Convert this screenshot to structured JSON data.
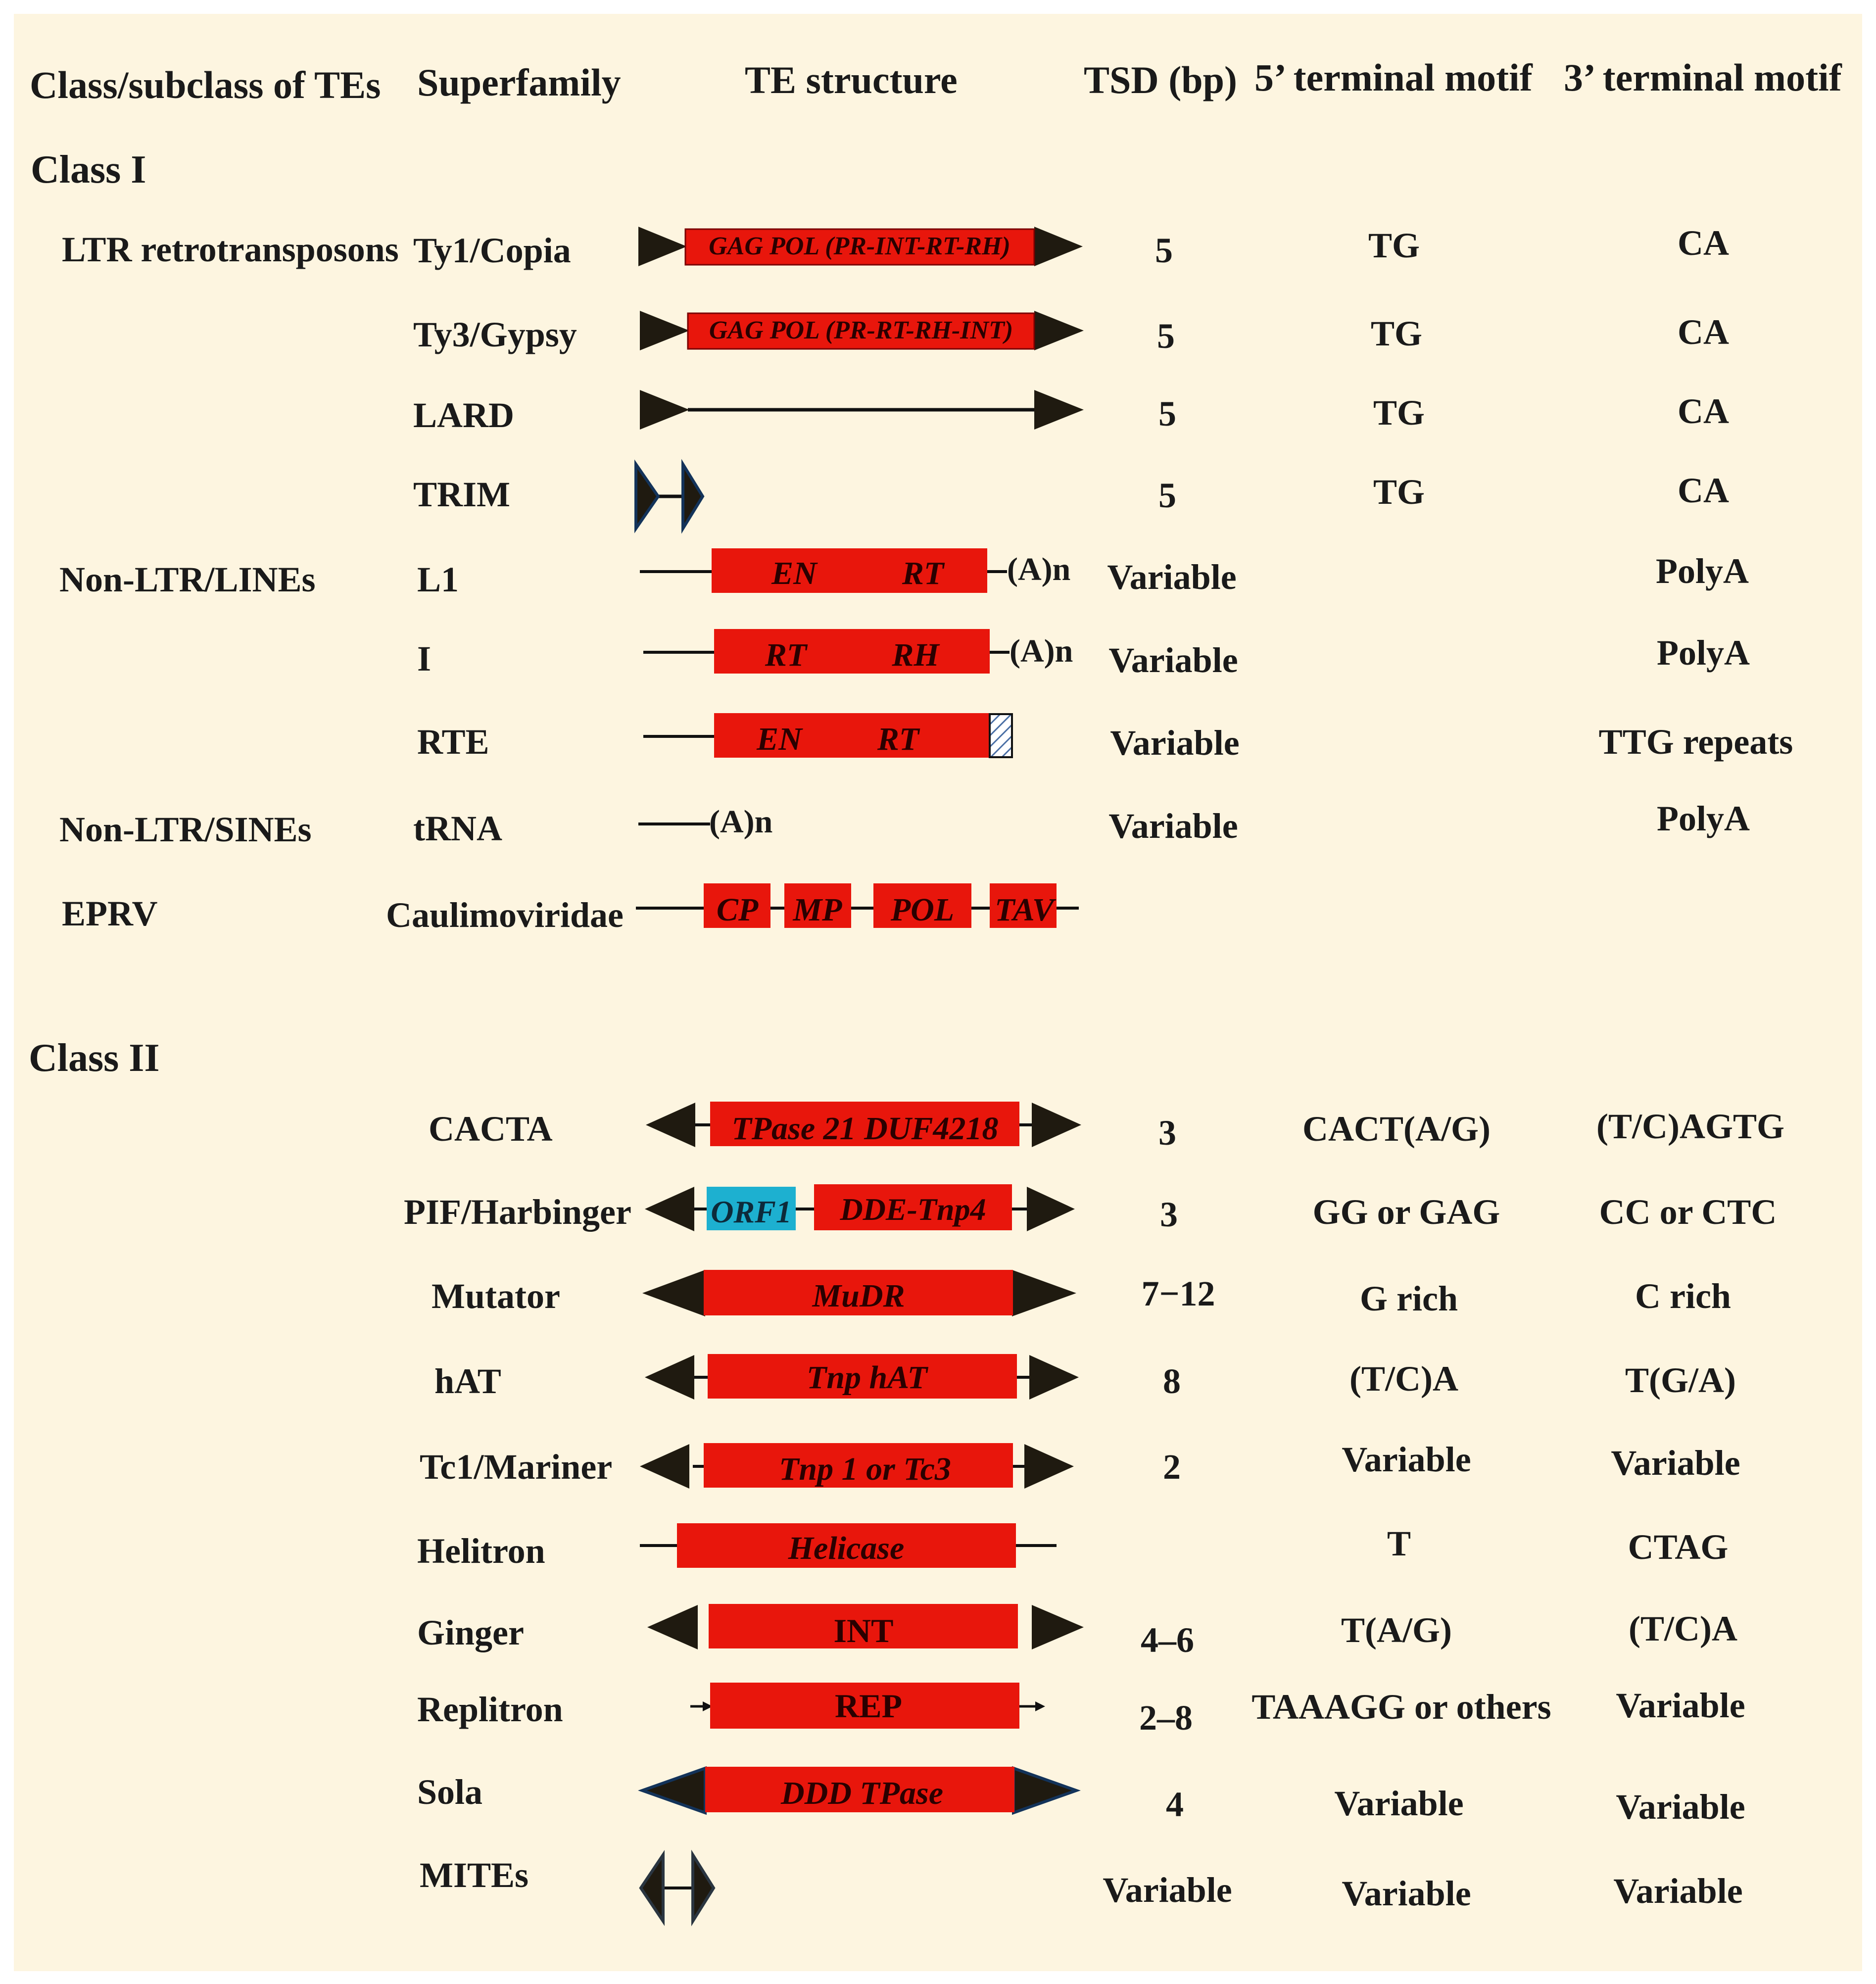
{
  "headers": {
    "class": "Class/subclass of TEs",
    "superfamily": "Superfamily",
    "structure": "TE structure",
    "tsd": "TSD (bp)",
    "motif5": "5’ terminal motif",
    "motif3": "3’ terminal motif"
  },
  "classes": {
    "class1": "Class I",
    "class2": "Class II"
  },
  "subclasses": {
    "ltr": "LTR retrotransposons",
    "lines": "Non-LTR/LINEs",
    "sines": "Non-LTR/SINEs",
    "eprv": "EPRV"
  },
  "rows": [
    {
      "superfamily": "Ty1/Copia",
      "tsd": "5",
      "motif5": "TG",
      "motif3": "CA"
    },
    {
      "superfamily": "Ty3/Gypsy",
      "tsd": "5",
      "motif5": "TG",
      "motif3": "CA"
    },
    {
      "superfamily": "LARD",
      "tsd": "5",
      "motif5": "TG",
      "motif3": "CA"
    },
    {
      "superfamily": "TRIM",
      "tsd": "5",
      "motif5": "TG",
      "motif3": "CA"
    },
    {
      "superfamily": "L1",
      "tsd": "Variable",
      "motif5": "",
      "motif3": "PolyA"
    },
    {
      "superfamily": "I",
      "tsd": "Variable",
      "motif5": "",
      "motif3": "PolyA"
    },
    {
      "superfamily": "RTE",
      "tsd": "Variable",
      "motif5": "",
      "motif3": "TTG repeats"
    },
    {
      "superfamily": "tRNA",
      "tsd": "Variable",
      "motif5": "",
      "motif3": "PolyA"
    },
    {
      "superfamily": "Caulimoviridae",
      "tsd": "",
      "motif5": "",
      "motif3": ""
    },
    {
      "superfamily": "CACTA",
      "tsd": "3",
      "motif5": "CACT(A/G)",
      "motif3": "(T/C)AGTG"
    },
    {
      "superfamily": "PIF/Harbinger",
      "tsd": "3",
      "motif5": "GG or GAG",
      "motif3": "CC or CTC"
    },
    {
      "superfamily": "Mutator",
      "tsd": "7−12",
      "motif5": "G rich",
      "motif3": "C rich"
    },
    {
      "superfamily": "hAT",
      "tsd": "8",
      "motif5": "(T/C)A",
      "motif3": "T(G/A)"
    },
    {
      "superfamily": "Tc1/Mariner",
      "tsd": "2",
      "motif5": "Variable",
      "motif3": "Variable"
    },
    {
      "superfamily": "Helitron",
      "tsd": "",
      "motif5": "T",
      "motif3": "CTAG"
    },
    {
      "superfamily": "Ginger",
      "tsd": "4–6",
      "motif5": "T(A/G)",
      "motif3": "(T/C)A"
    },
    {
      "superfamily": "Replitron",
      "tsd": "2–8",
      "motif5": "TAAAGG or others",
      "motif3": "Variable"
    },
    {
      "superfamily": "Sola",
      "tsd": "4",
      "motif5": "Variable",
      "motif3": "Variable"
    },
    {
      "superfamily": "MITEs",
      "tsd": "Variable",
      "motif5": "Variable",
      "motif3": "Variable"
    }
  ],
  "domains": {
    "copia": "GAG POL (PR-INT-RT-RH)",
    "gypsy": "GAG POL (PR-RT-RH-INT)",
    "l1_en": "EN",
    "l1_rt": "RT",
    "l1_tail": "(A)n",
    "i_rt": "RT",
    "i_rh": "RH",
    "i_tail": "(A)n",
    "rte_en": "EN",
    "rte_rt": "RT",
    "trna_tail": "(A)n",
    "cp": "CP",
    "mp": "MP",
    "pol": "POL",
    "tav": "TAV",
    "cacta": "TPase 21  DUF4218",
    "orf1": "ORF1",
    "tnp4": "DDE-Tnp4",
    "mudr": "MuDR",
    "hat": "Tnp hAT",
    "tc1": "Tnp 1 or Tc3",
    "helicase": "Helicase",
    "int": "INT",
    "rep": "REP",
    "ddd": "DDD TPase"
  },
  "colors": {
    "background": "#fdf5e0",
    "domain_red": "#e8160c",
    "orf1_cyan": "#1db0d0",
    "ltr_dark": "#1f1a10",
    "text": "#1a1a1a"
  }
}
